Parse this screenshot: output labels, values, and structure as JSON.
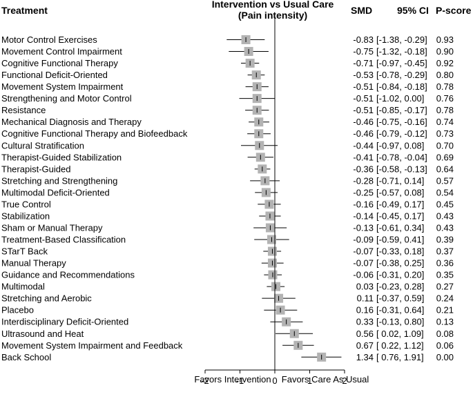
{
  "chart_data": {
    "type": "forest",
    "headers": {
      "treatment": "Treatment",
      "title_line1": "Intervention vs Usual Care",
      "title_line2": "(Pain intensity)",
      "smd": "SMD",
      "ci": "95% CI",
      "pscore": "P-score"
    },
    "rows": [
      {
        "label": "Motor Control Exercises",
        "smd": -0.83,
        "lo": -1.38,
        "hi": -0.29,
        "smd_text": "-0.83",
        "ci_text": "[-1.38, -0.29]",
        "p_text": "0.93"
      },
      {
        "label": "Movement Control Impairment",
        "smd": -0.75,
        "lo": -1.32,
        "hi": -0.18,
        "smd_text": "-0.75",
        "ci_text": "[-1.32, -0.18]",
        "p_text": "0.90"
      },
      {
        "label": "Cognitive Functional Therapy",
        "smd": -0.71,
        "lo": -0.97,
        "hi": -0.45,
        "smd_text": "-0.71",
        "ci_text": "[-0.97, -0.45]",
        "p_text": "0.92"
      },
      {
        "label": "Functional Deficit-Oriented",
        "smd": -0.53,
        "lo": -0.78,
        "hi": -0.29,
        "smd_text": "-0.53",
        "ci_text": "[-0.78, -0.29]",
        "p_text": "0.80"
      },
      {
        "label": "Movement System Impairment",
        "smd": -0.51,
        "lo": -0.84,
        "hi": -0.18,
        "smd_text": "-0.51",
        "ci_text": "[-0.84, -0.18]",
        "p_text": "0.78"
      },
      {
        "label": "Strengthening and Motor Control",
        "smd": -0.51,
        "lo": -1.02,
        "hi": 0.0,
        "smd_text": "-0.51",
        "ci_text": "[-1.02, 0.00]",
        "p_text": "0.76"
      },
      {
        "label": "Resistance",
        "smd": -0.51,
        "lo": -0.85,
        "hi": -0.17,
        "smd_text": "-0.51",
        "ci_text": "[-0.85, -0.17]",
        "p_text": "0.78"
      },
      {
        "label": "Mechanical Diagnosis and Therapy",
        "smd": -0.46,
        "lo": -0.75,
        "hi": -0.16,
        "smd_text": "-0.46",
        "ci_text": "[-0.75, -0.16]",
        "p_text": "0.74"
      },
      {
        "label": "Cognitive Functional Therapy and Biofeedback",
        "smd": -0.46,
        "lo": -0.79,
        "hi": -0.12,
        "smd_text": "-0.46",
        "ci_text": "[-0.79, -0.12]",
        "p_text": "0.73"
      },
      {
        "label": "Cultural Stratification",
        "smd": -0.44,
        "lo": -0.97,
        "hi": 0.08,
        "smd_text": "-0.44",
        "ci_text": "[-0.97, 0.08]",
        "p_text": "0.70"
      },
      {
        "label": "Therapist-Guided Stabilization",
        "smd": -0.41,
        "lo": -0.78,
        "hi": -0.04,
        "smd_text": "-0.41",
        "ci_text": "[-0.78, -0.04]",
        "p_text": "0.69"
      },
      {
        "label": "Therapist-Guided",
        "smd": -0.36,
        "lo": -0.58,
        "hi": -0.13,
        "smd_text": "-0.36",
        "ci_text": "[-0.58, -0.13]",
        "p_text": "0.64"
      },
      {
        "label": "Stretching and Strengthening",
        "smd": -0.28,
        "lo": -0.71,
        "hi": 0.14,
        "smd_text": "-0.28",
        "ci_text": "[-0.71, 0.14]",
        "p_text": "0.57"
      },
      {
        "label": "Multimodal Deficit-Oriented",
        "smd": -0.25,
        "lo": -0.57,
        "hi": 0.08,
        "smd_text": "-0.25",
        "ci_text": "[-0.57, 0.08]",
        "p_text": "0.54"
      },
      {
        "label": "True Control",
        "smd": -0.16,
        "lo": -0.49,
        "hi": 0.17,
        "smd_text": "-0.16",
        "ci_text": "[-0.49, 0.17]",
        "p_text": "0.45"
      },
      {
        "label": "Stabilization",
        "smd": -0.14,
        "lo": -0.45,
        "hi": 0.17,
        "smd_text": "-0.14",
        "ci_text": "[-0.45, 0.17]",
        "p_text": "0.43"
      },
      {
        "label": "Sham or Manual Therapy",
        "smd": -0.13,
        "lo": -0.61,
        "hi": 0.34,
        "smd_text": "-0.13",
        "ci_text": "[-0.61, 0.34]",
        "p_text": "0.43"
      },
      {
        "label": "Treatment-Based Classification",
        "smd": -0.09,
        "lo": -0.59,
        "hi": 0.41,
        "smd_text": "-0.09",
        "ci_text": "[-0.59, 0.41]",
        "p_text": "0.39"
      },
      {
        "label": "STarT Back",
        "smd": -0.07,
        "lo": -0.33,
        "hi": 0.18,
        "smd_text": "-0.07",
        "ci_text": "[-0.33, 0.18]",
        "p_text": "0.37"
      },
      {
        "label": "Manual Therapy",
        "smd": -0.07,
        "lo": -0.38,
        "hi": 0.25,
        "smd_text": "-0.07",
        "ci_text": "[-0.38, 0.25]",
        "p_text": "0.36"
      },
      {
        "label": "Guidance and Recommendations",
        "smd": -0.06,
        "lo": -0.31,
        "hi": 0.2,
        "smd_text": "-0.06",
        "ci_text": "[-0.31, 0.20]",
        "p_text": "0.35"
      },
      {
        "label": "Multimodal",
        "smd": 0.03,
        "lo": -0.23,
        "hi": 0.28,
        "smd_text": "0.03",
        "ci_text": "[-0.23, 0.28]",
        "p_text": "0.27"
      },
      {
        "label": "Stretching and Aerobic",
        "smd": 0.11,
        "lo": -0.37,
        "hi": 0.59,
        "smd_text": "0.11",
        "ci_text": "[-0.37, 0.59]",
        "p_text": "0.24"
      },
      {
        "label": "Placebo",
        "smd": 0.16,
        "lo": -0.31,
        "hi": 0.64,
        "smd_text": "0.16",
        "ci_text": "[-0.31, 0.64]",
        "p_text": "0.21"
      },
      {
        "label": "Interdisciplinary Deficit-Oriented",
        "smd": 0.33,
        "lo": -0.13,
        "hi": 0.8,
        "smd_text": "0.33",
        "ci_text": "[-0.13, 0.80]",
        "p_text": "0.13"
      },
      {
        "label": "Ultrasound and Heat",
        "smd": 0.56,
        "lo": 0.02,
        "hi": 1.09,
        "smd_text": "0.56",
        "ci_text": "[ 0.02, 1.09]",
        "p_text": "0.08"
      },
      {
        "label": "Movement System Impairment and Feedback",
        "smd": 0.67,
        "lo": 0.22,
        "hi": 1.12,
        "smd_text": "0.67",
        "ci_text": "[ 0.22, 1.12]",
        "p_text": "0.06"
      },
      {
        "label": "Back School",
        "smd": 1.34,
        "lo": 0.76,
        "hi": 1.91,
        "smd_text": "1.34",
        "ci_text": "[ 0.76, 1.91]",
        "p_text": "0.00"
      }
    ],
    "x_axis": {
      "range": [
        -2,
        2
      ],
      "ticks": [
        -2,
        -1,
        0,
        1,
        2
      ],
      "tick_labels": [
        "-2",
        "-1",
        "0",
        "1",
        "2"
      ],
      "label_left": "Favors Intervention",
      "label_right": "Favors Care As Usual"
    },
    "colors": {
      "marker": "#b3b3b3",
      "line": "#000000"
    }
  }
}
